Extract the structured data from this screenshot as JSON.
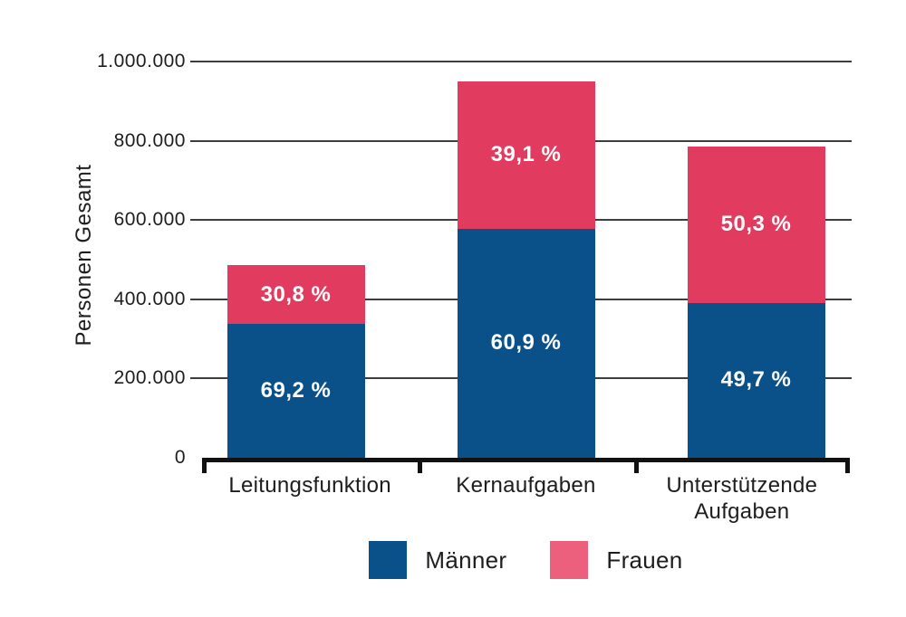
{
  "chart_data": {
    "type": "bar",
    "stacked": true,
    "title": "",
    "ylabel": "Personen Gesamt",
    "xlabel": "",
    "categories": [
      "Leitungsfunktion",
      "Kernaufgaben",
      "Unterstützende Aufgaben"
    ],
    "series": [
      {
        "name": "Männer",
        "color": "#0a518a",
        "values": [
          337000,
          578000,
          391000
        ],
        "percent_labels": [
          "69,2 %",
          "60,9 %",
          "49,7 %"
        ]
      },
      {
        "name": "Frauen",
        "color": "#e23b60",
        "values": [
          150000,
          372000,
          395000
        ],
        "percent_labels": [
          "30,8 %",
          "39,1 %",
          "50,3 %"
        ]
      }
    ],
    "totals_estimated": [
      487000,
      950000,
      786000
    ],
    "ylim": [
      0,
      1000000
    ],
    "yticks": [
      0,
      200000,
      400000,
      600000,
      800000,
      1000000
    ],
    "ytick_labels": [
      "0",
      "200.000",
      "400.000",
      "600.000",
      "800.000",
      "1.000.000"
    ],
    "grid": true,
    "legend_position": "bottom"
  },
  "legend": {
    "items": [
      {
        "label": "Männer",
        "color": "#0a518a"
      },
      {
        "label": "Frauen",
        "color": "#ec5f7d"
      }
    ]
  },
  "colors": {
    "maenner_bar": "#0a518a",
    "frauen_bar": "#e23b60",
    "frauen_legend_swatch": "#ec5f7d",
    "gridline": "#3d3d3d",
    "axis": "#111111",
    "text": "#1d1d1d",
    "segment_label_text": "#ffffff",
    "background": "#ffffff"
  }
}
